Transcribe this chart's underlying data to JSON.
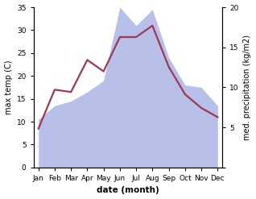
{
  "months": [
    "Jan",
    "Feb",
    "Mar",
    "Apr",
    "May",
    "Jun",
    "Jul",
    "Aug",
    "Sep",
    "Oct",
    "Nov",
    "Dec"
  ],
  "month_positions": [
    0,
    1,
    2,
    3,
    4,
    5,
    6,
    7,
    8,
    9,
    10,
    11
  ],
  "temp_max": [
    8.5,
    17.0,
    16.5,
    23.5,
    21.0,
    28.5,
    28.5,
    31.0,
    22.0,
    16.0,
    13.0,
    11.0
  ],
  "precip": [
    10.5,
    13.5,
    14.5,
    16.5,
    19.0,
    35.0,
    31.0,
    34.5,
    24.0,
    18.0,
    17.5,
    13.5
  ],
  "temp_color": "#9b3a52",
  "precip_fill_color": "#b8bfe8",
  "ylabel_left": "max temp (C)",
  "ylabel_right": "med. precipitation (kg/m2)",
  "xlabel": "date (month)",
  "ylim_left": [
    0,
    35
  ],
  "ylim_right": [
    0,
    20
  ],
  "yticks_left": [
    0,
    5,
    10,
    15,
    20,
    25,
    30,
    35
  ],
  "yticks_right": [
    0,
    5,
    10,
    15,
    20
  ],
  "background_color": "#ffffff",
  "line_width": 1.6,
  "figsize": [
    3.18,
    2.47
  ],
  "dpi": 100
}
